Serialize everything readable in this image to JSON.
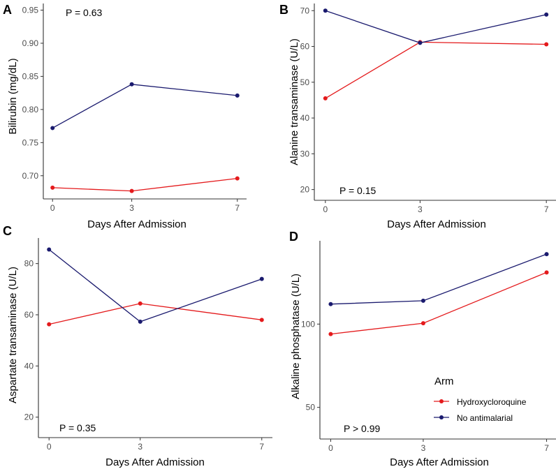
{
  "colors": {
    "hydroxychloroquine": "#e41a1c",
    "no_antimalarial": "#1a1a6e",
    "axis": "#333333"
  },
  "legend": {
    "title": "Arm",
    "items": [
      {
        "label": "Hydroxycloroquine",
        "color": "#e41a1c"
      },
      {
        "label": "No antimalarial",
        "color": "#1a1a6e"
      }
    ]
  },
  "chart_data": [
    {
      "type": "line",
      "panel": "A",
      "xlabel": "Days After Admission",
      "ylabel": "Bilirubin (mg/dL)",
      "annotation": "P = 0.63",
      "x": [
        0,
        3,
        7
      ],
      "xlim": [
        -0.35,
        7.35
      ],
      "ylim": [
        0.665,
        0.96
      ],
      "yticks": [
        0.7,
        0.75,
        0.8,
        0.85,
        0.9,
        0.95
      ],
      "ytick_labels": [
        "0.70",
        "0.75",
        "0.80",
        "0.85",
        "0.90",
        "0.95"
      ],
      "series": [
        {
          "name": "Hydroxycloroquine",
          "values": [
            0.682,
            0.677,
            0.696
          ]
        },
        {
          "name": "No antimalarial",
          "values": [
            0.772,
            0.838,
            0.821
          ]
        }
      ]
    },
    {
      "type": "line",
      "panel": "B",
      "xlabel": "Days After Admission",
      "ylabel": "Alanine transaminase (U/L)",
      "annotation": "P = 0.15",
      "x": [
        0,
        3,
        7
      ],
      "xlim": [
        -0.35,
        7.35
      ],
      "ylim": [
        17,
        72
      ],
      "yticks": [
        20,
        30,
        40,
        50,
        60,
        70
      ],
      "ytick_labels": [
        "20",
        "30",
        "40",
        "50",
        "60",
        "70"
      ],
      "series": [
        {
          "name": "Hydroxycloroquine",
          "values": [
            45.5,
            61.2,
            60.6
          ]
        },
        {
          "name": "No antimalarial",
          "values": [
            70.0,
            61.0,
            68.9
          ]
        }
      ]
    },
    {
      "type": "line",
      "panel": "C",
      "xlabel": "Days After Admission",
      "ylabel": "Aspartate transaminase (U/L)",
      "annotation": "P = 0.35",
      "x": [
        0,
        3,
        7
      ],
      "xlim": [
        -0.35,
        7.35
      ],
      "ylim": [
        12,
        90
      ],
      "yticks": [
        20,
        40,
        60,
        80
      ],
      "ytick_labels": [
        "20",
        "40",
        "60",
        "80"
      ],
      "series": [
        {
          "name": "Hydroxycloroquine",
          "values": [
            56.3,
            64.4,
            58.0
          ]
        },
        {
          "name": "No antimalarial",
          "values": [
            85.5,
            57.3,
            74.0
          ]
        }
      ]
    },
    {
      "type": "line",
      "panel": "D",
      "xlabel": "Days After Admission",
      "ylabel": "Alkaline phosphatase (U/L)",
      "annotation": "P > 0.99",
      "x": [
        0,
        3,
        7
      ],
      "xlim": [
        -0.35,
        7.35
      ],
      "ylim": [
        31,
        150
      ],
      "yticks": [
        50,
        100
      ],
      "ytick_labels": [
        "50",
        "100"
      ],
      "series": [
        {
          "name": "Hydroxycloroquine",
          "values": [
            94.0,
            100.5,
            131.0
          ]
        },
        {
          "name": "No antimalarial",
          "values": [
            112.0,
            114.0,
            142.0
          ]
        }
      ]
    }
  ]
}
